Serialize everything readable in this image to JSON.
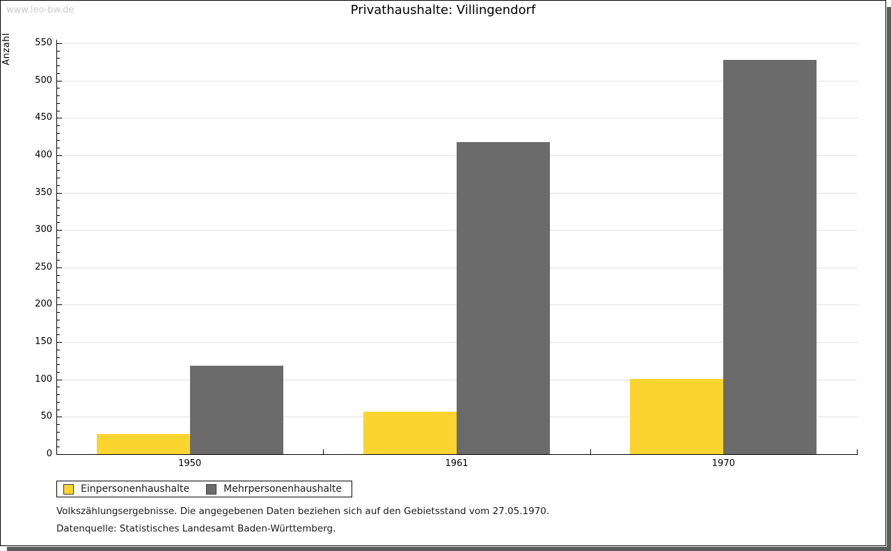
{
  "watermark": "www.leo-bw.de",
  "window": {
    "border_color": "#000000",
    "shadow_color": "#5c5c5c",
    "background": "#ffffff"
  },
  "chart_data": {
    "type": "bar",
    "title": "Privathaushalte: Villingendorf",
    "xlabel": "",
    "ylabel": "Anzahl",
    "categories": [
      "1950",
      "1961",
      "1970"
    ],
    "series": [
      {
        "name": "Einpersonenhaushalte",
        "color": "#fcd42f",
        "values": [
          27,
          57,
          101
        ]
      },
      {
        "name": "Mehrpersonenhaushalte",
        "color": "#6b6b6b",
        "values": [
          118,
          418,
          528
        ]
      }
    ],
    "ylim": [
      0,
      550
    ],
    "ytick_major": 50,
    "ytick_minor": 10,
    "grid": true,
    "gridline_color": "#e2e2e2",
    "legend_position": "bottom-left"
  },
  "footnotes": [
    "Volkszählungsergebnisse. Die angegebenen Daten beziehen sich auf den Gebietsstand vom 27.05.1970.",
    "Datenquelle: Statistisches Landesamt Baden-Württemberg."
  ]
}
